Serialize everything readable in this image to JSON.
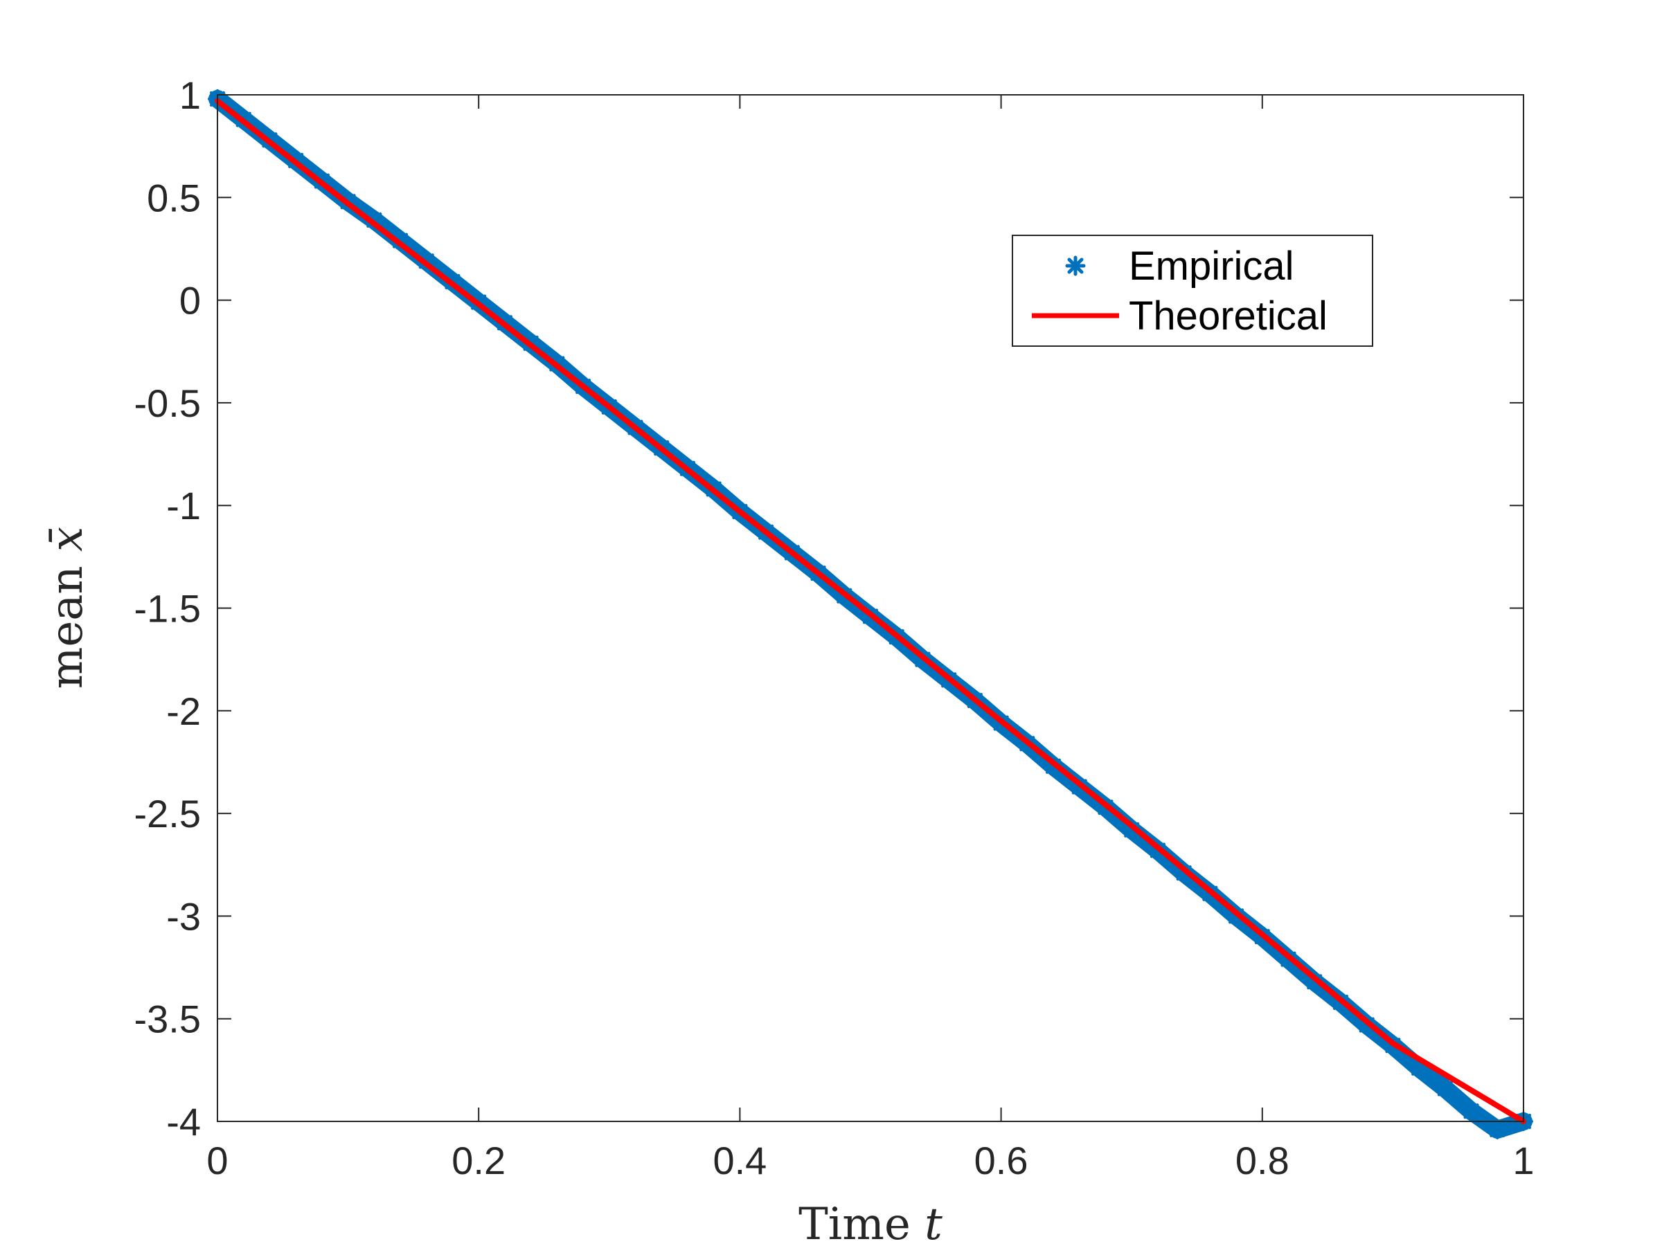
{
  "chart_data": {
    "type": "line",
    "title": "",
    "xlabel": {
      "text": "Time ",
      "var": "t"
    },
    "ylabel": {
      "text": "mean ",
      "var": "x̄"
    },
    "xlim": [
      0,
      1
    ],
    "ylim": [
      -4,
      1
    ],
    "xticks": [
      0,
      0.2,
      0.4,
      0.6,
      0.8,
      1
    ],
    "xtick_labels": [
      "0",
      "0.2",
      "0.4",
      "0.6",
      "0.8",
      "1"
    ],
    "yticks": [
      1,
      0.5,
      0,
      -0.5,
      -1,
      -1.5,
      -2,
      -2.5,
      -3,
      -3.5,
      -4
    ],
    "ytick_labels": [
      "1",
      "0.5",
      "0",
      "-0.5",
      "-1",
      "-1.5",
      "-2",
      "-2.5",
      "-3",
      "-3.5",
      "-4"
    ],
    "grid": false,
    "legend_position": "upper-right",
    "series": [
      {
        "name": "Empirical",
        "style": "markers",
        "marker": "asterisk",
        "color": "#0072BD",
        "x": [
          0,
          0.02,
          0.04,
          0.06,
          0.08,
          0.1,
          0.12,
          0.14,
          0.16,
          0.18,
          0.2,
          0.22,
          0.24,
          0.26,
          0.28,
          0.3,
          0.32,
          0.34,
          0.36,
          0.38,
          0.4,
          0.42,
          0.44,
          0.46,
          0.48,
          0.5,
          0.52,
          0.54,
          0.56,
          0.58,
          0.6,
          0.62,
          0.64,
          0.66,
          0.68,
          0.7,
          0.72,
          0.74,
          0.76,
          0.78,
          0.8,
          0.82,
          0.84,
          0.86,
          0.88,
          0.9,
          0.92,
          0.94,
          0.96,
          0.98,
          1
        ],
        "y": [
          0.98,
          0.88,
          0.78,
          0.68,
          0.58,
          0.48,
          0.39,
          0.29,
          0.19,
          0.09,
          -0.01,
          -0.11,
          -0.21,
          -0.31,
          -0.42,
          -0.52,
          -0.62,
          -0.72,
          -0.82,
          -0.92,
          -1.03,
          -1.13,
          -1.23,
          -1.33,
          -1.44,
          -1.54,
          -1.64,
          -1.75,
          -1.85,
          -1.95,
          -2.06,
          -2.16,
          -2.27,
          -2.37,
          -2.47,
          -2.58,
          -2.68,
          -2.79,
          -2.89,
          -3.0,
          -3.1,
          -3.21,
          -3.32,
          -3.42,
          -3.53,
          -3.63,
          -3.74,
          -3.84,
          -3.95,
          -4.04,
          -4.0
        ]
      },
      {
        "name": "Theoretical",
        "style": "line",
        "color": "#FF0000",
        "x": [
          0,
          0.1,
          0.2,
          0.3,
          0.4,
          0.5,
          0.6,
          0.7,
          0.8,
          0.9,
          1
        ],
        "y": [
          0.97,
          0.47,
          -0.02,
          -0.52,
          -1.03,
          -1.53,
          -2.05,
          -2.56,
          -3.09,
          -3.62,
          -4.0
        ]
      }
    ]
  }
}
